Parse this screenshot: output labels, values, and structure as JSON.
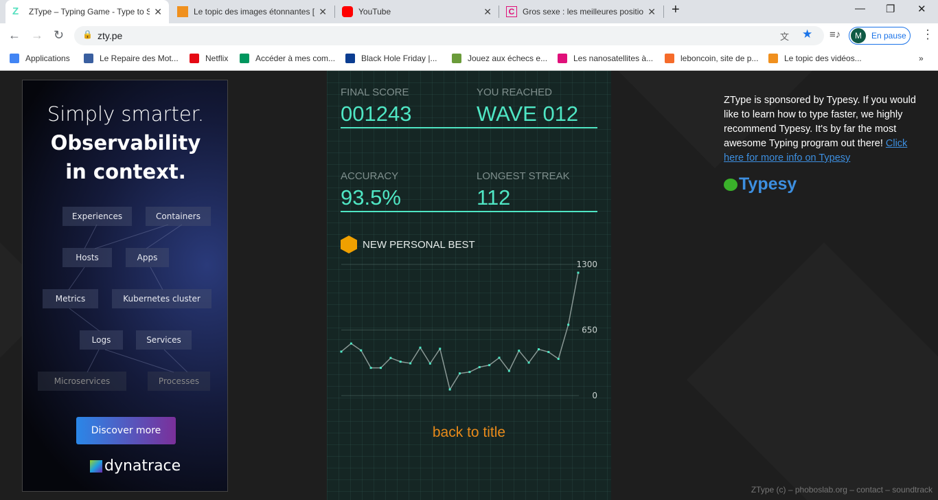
{
  "browser": {
    "tabs": [
      {
        "title": "ZType – Typing Game - Type to S",
        "active": true,
        "favicon": "#58e0c0"
      },
      {
        "title": "Le topic des images étonnantes [",
        "active": false,
        "favicon": "#f0901e"
      },
      {
        "title": "YouTube",
        "active": false,
        "favicon": "#ff0000"
      },
      {
        "title": "Gros sexe : les meilleures position",
        "active": false,
        "favicon": "#e0107a"
      }
    ],
    "new_tab": "+",
    "url": "zty.pe",
    "profile_initial": "M",
    "profile_status": "En pause",
    "bookmarks": [
      {
        "label": "Applications",
        "color": "#4285f4"
      },
      {
        "label": "Le Repaire des Mot...",
        "color": "#3a5fa0"
      },
      {
        "label": "Netflix",
        "color": "#e50914"
      },
      {
        "label": "Accéder à mes com...",
        "color": "#00965e"
      },
      {
        "label": "Black Hole Friday |...",
        "color": "#0b3d91"
      },
      {
        "label": "Jouez aux échecs e...",
        "color": "#6a9b3a"
      },
      {
        "label": "Les nanosatellites à...",
        "color": "#e0107a"
      },
      {
        "label": "leboncoin, site de p...",
        "color": "#f56b2a"
      },
      {
        "label": "Le topic des vidéos...",
        "color": "#f0901e"
      }
    ],
    "more": "»"
  },
  "ad": {
    "line1": "Simply smarter.",
    "line2": "Observability",
    "line3": "in context.",
    "nodes": [
      "Experiences",
      "Containers",
      "Hosts",
      "Apps",
      "Metrics",
      "Kubernetes cluster",
      "Logs",
      "Services",
      "Microservices",
      "Processes"
    ],
    "cta": "Discover more",
    "brand": "dynatrace"
  },
  "game": {
    "final_score_label": "FINAL SCORE",
    "final_score": "001243",
    "reached_label": "YOU REACHED",
    "reached": "WAVE 012",
    "accuracy_label": "ACCURACY",
    "accuracy": "93.5%",
    "streak_label": "LONGEST STREAK",
    "streak": "112",
    "personal_best": "NEW PERSONAL BEST",
    "back": "back to title",
    "accent": "#4fe6c4"
  },
  "chart_data": {
    "type": "line",
    "ylim": [
      0,
      1300
    ],
    "yticks": [
      "1300",
      "650",
      "0"
    ],
    "values": [
      436,
      516,
      448,
      275,
      275,
      373,
      336,
      320,
      475,
      318,
      464,
      61,
      220,
      234,
      282,
      302,
      375,
      245,
      445,
      327,
      459,
      432,
      364,
      702,
      1218
    ]
  },
  "sponsor": {
    "text": "ZType is sponsored by Typesy. If you would like to learn how to type faster, we highly recommend Typesy. It's by far the most awesome Typing program out there! ",
    "link": "Click here for more info on Typesy",
    "logo": "Typesy"
  },
  "footer": {
    "text": "ZType (c) – phoboslab.org – contact – soundtrack"
  }
}
